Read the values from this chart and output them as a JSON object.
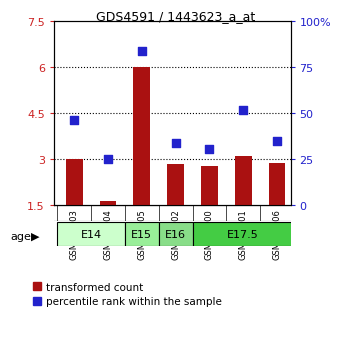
{
  "title": "GDS4591 / 1443623_a_at",
  "samples": [
    "GSM936403",
    "GSM936404",
    "GSM936405",
    "GSM936402",
    "GSM936400",
    "GSM936401",
    "GSM936406"
  ],
  "red_values": [
    3.0,
    1.65,
    6.0,
    2.85,
    2.8,
    3.1,
    2.9
  ],
  "blue_values": [
    4.3,
    3.0,
    6.55,
    3.55,
    3.35,
    4.6,
    3.6
  ],
  "red_base": 1.5,
  "ylim_left": [
    1.5,
    7.5
  ],
  "ylim_right": [
    0,
    100
  ],
  "yticks_left": [
    1.5,
    3.0,
    4.5,
    6.0,
    7.5
  ],
  "ytick_labels_left": [
    "1.5",
    "3",
    "4.5",
    "6",
    "7.5"
  ],
  "yticks_right": [
    0,
    25,
    50,
    75,
    100
  ],
  "ytick_labels_right": [
    "0",
    "25",
    "50",
    "75",
    "100%"
  ],
  "hlines": [
    3.0,
    4.5,
    6.0
  ],
  "age_groups": [
    {
      "label": "E14",
      "start": 0,
      "end": 2,
      "color": "#ccffcc"
    },
    {
      "label": "E15",
      "start": 2,
      "end": 3,
      "color": "#99ee99"
    },
    {
      "label": "E16",
      "start": 3,
      "end": 4,
      "color": "#88dd88"
    },
    {
      "label": "E17.5",
      "start": 4,
      "end": 7,
      "color": "#44cc44"
    }
  ],
  "bar_color": "#aa1111",
  "dot_color": "#2222cc",
  "bar_width": 0.5,
  "legend_red": "transformed count",
  "legend_blue": "percentile rank within the sample",
  "left_tick_color": "#cc2222",
  "right_tick_color": "#2222cc",
  "sample_box_color": "#cccccc",
  "xlim": [
    -0.6,
    6.4
  ]
}
